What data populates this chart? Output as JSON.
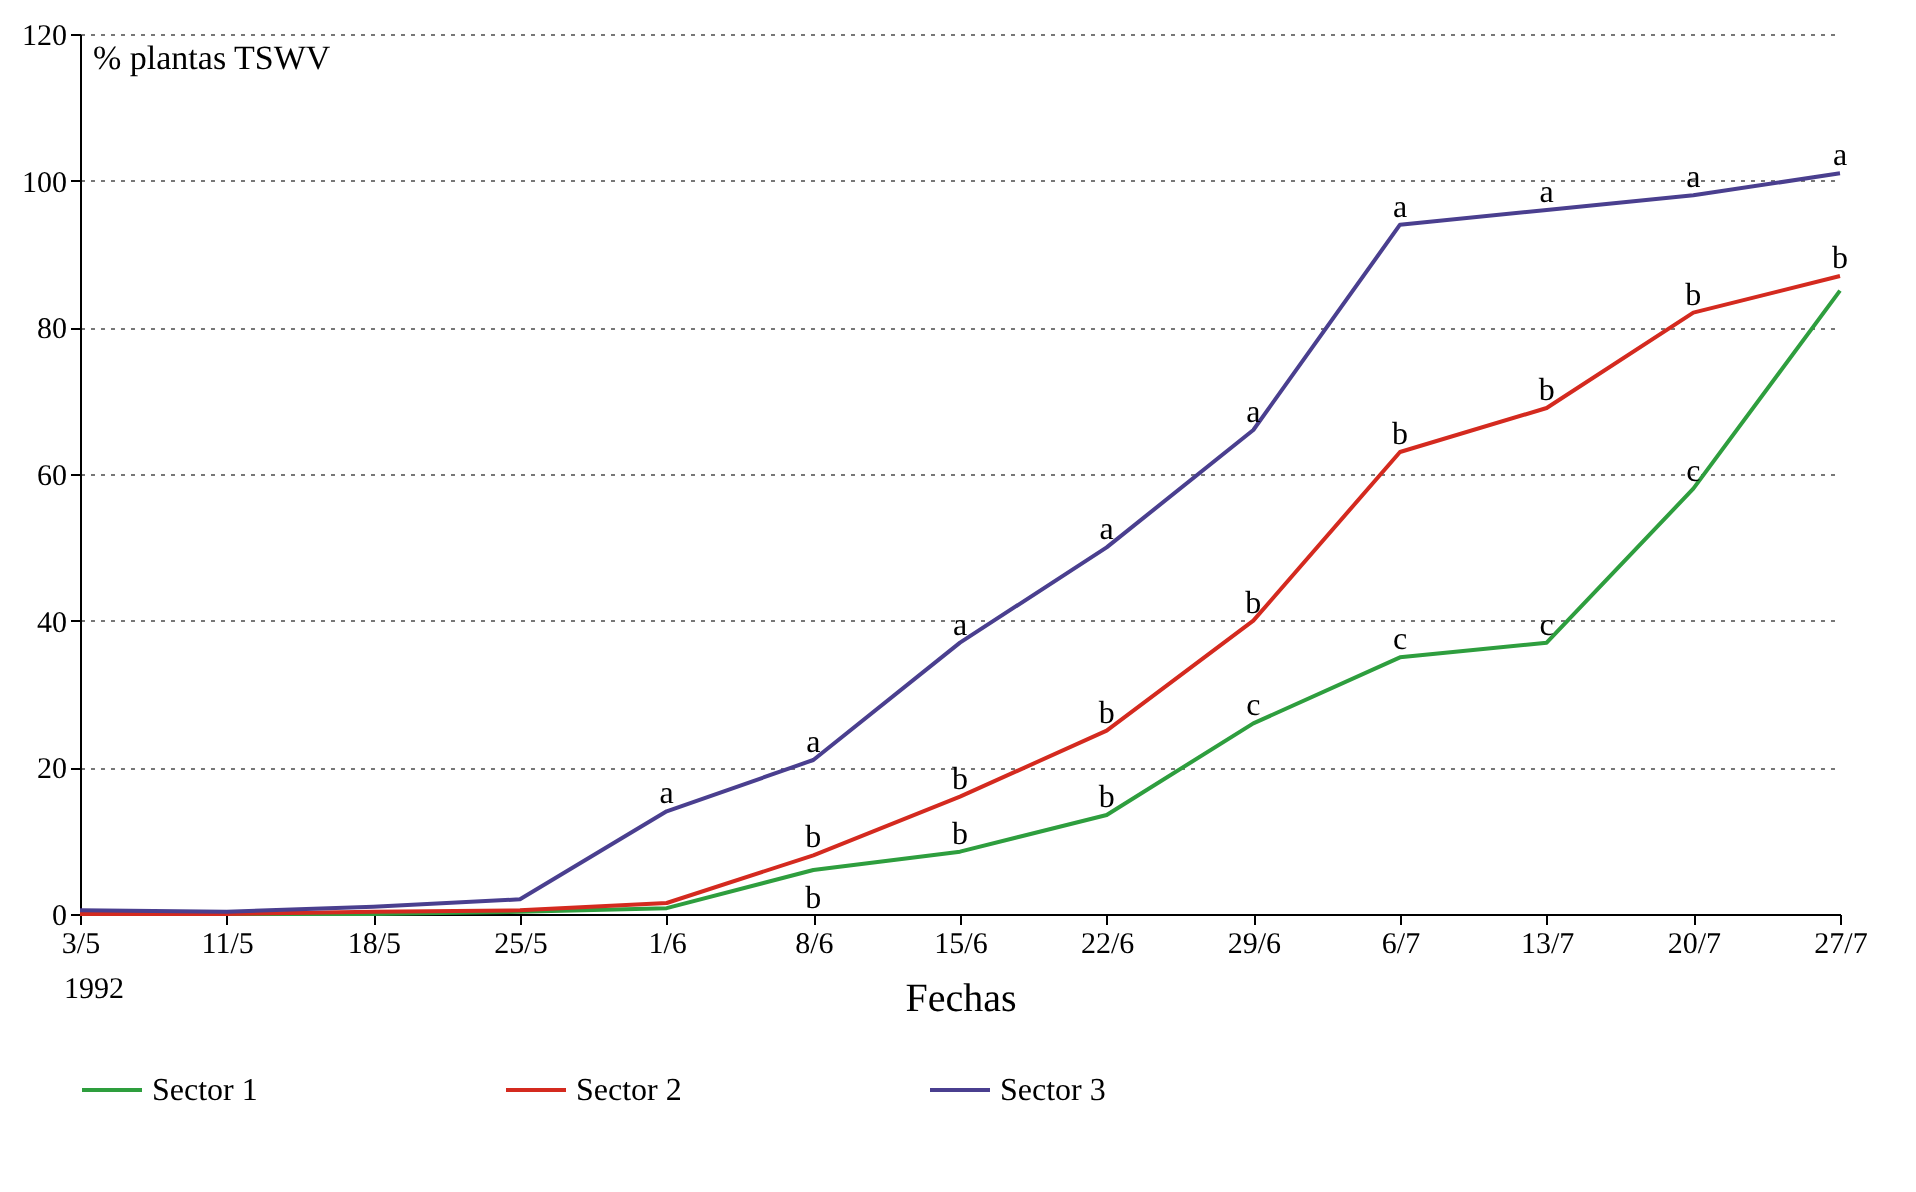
{
  "chart_data": {
    "type": "line",
    "xlabel": "Fechas",
    "ylabel": "% plantas TSWV",
    "categories": [
      "3/5",
      "11/5",
      "18/5",
      "25/5",
      "1/6",
      "8/6",
      "15/6",
      "22/6",
      "29/6",
      "6/7",
      "13/7",
      "20/7",
      "27/7"
    ],
    "series": [
      {
        "name": "Sector 1",
        "color": "#2e9e3e",
        "values": [
          0,
          0,
          0,
          0.3,
          0.8,
          6,
          8.5,
          13.5,
          26,
          35,
          37,
          58,
          85
        ]
      },
      {
        "name": "Sector 2",
        "color": "#d42a1f",
        "values": [
          0,
          0,
          0.3,
          0.5,
          1.5,
          8,
          16,
          25,
          40,
          63,
          69,
          82,
          87
        ]
      },
      {
        "name": "Sector 3",
        "color": "#4a3f8f",
        "values": [
          0.5,
          0.3,
          1,
          2,
          14,
          21,
          37,
          50,
          66,
          94,
          96,
          98,
          101
        ]
      }
    ],
    "ylim": [
      0,
      120
    ],
    "yticks": [
      0,
      20,
      40,
      60,
      80,
      100,
      120
    ],
    "grid": "y",
    "legend": "bottom",
    "marker": "none",
    "line_style": "solid",
    "annotations": [
      "1992",
      {
        "text": "a",
        "x": "1/6",
        "y": 14
      },
      {
        "text": "a",
        "x": "8/6",
        "y": 21
      },
      {
        "text": "a",
        "x": "15/6",
        "y": 37
      },
      {
        "text": "a",
        "x": "22/6",
        "y": 50
      },
      {
        "text": "a",
        "x": "29/6",
        "y": 66
      },
      {
        "text": "a",
        "x": "6/7",
        "y": 94
      },
      {
        "text": "a",
        "x": "13/7",
        "y": 96
      },
      {
        "text": "a",
        "x": "20/7",
        "y": 98
      },
      {
        "text": "a",
        "x": "27/7",
        "y": 101
      },
      {
        "text": "b",
        "x": "8/6",
        "y": 8
      },
      {
        "text": "b",
        "x": "15/6",
        "y": 16
      },
      {
        "text": "b",
        "x": "22/6",
        "y": 25
      },
      {
        "text": "b",
        "x": "29/6",
        "y": 40
      },
      {
        "text": "b",
        "x": "6/7",
        "y": 63
      },
      {
        "text": "b",
        "x": "13/7",
        "y": 69
      },
      {
        "text": "b",
        "x": "20/7",
        "y": 82
      },
      {
        "text": "b",
        "x": "27/7",
        "y": 87
      },
      {
        "text": "b",
        "x": "8/6",
        "y": 6
      },
      {
        "text": "b",
        "x": "15/6",
        "y": 8.5
      },
      {
        "text": "b",
        "x": "22/6",
        "y": 13.5
      },
      {
        "text": "c",
        "x": "29/6",
        "y": 26
      },
      {
        "text": "c",
        "x": "6/7",
        "y": 35
      },
      {
        "text": "c",
        "x": "13/7",
        "y": 37
      },
      {
        "text": "c",
        "x": "20/7",
        "y": 58
      }
    ]
  }
}
